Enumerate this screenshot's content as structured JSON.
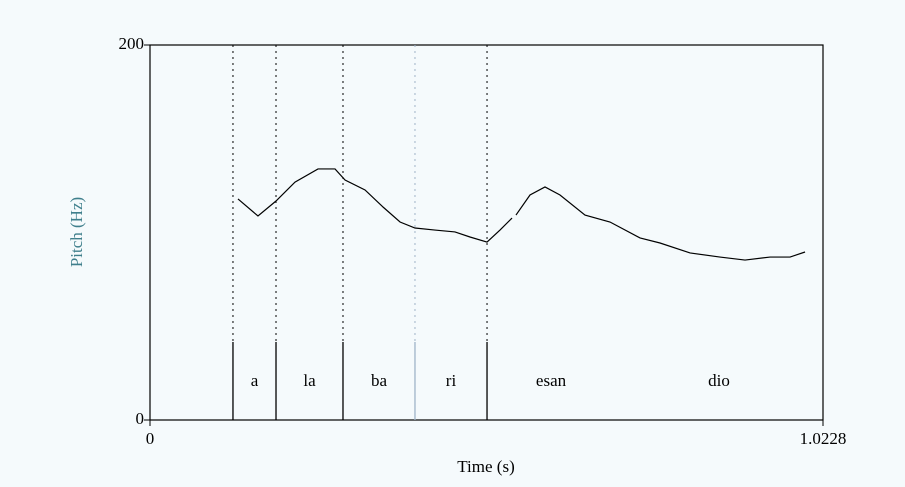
{
  "chart_data": {
    "type": "line",
    "x_label": "Time (s)",
    "y_label": "Pitch (Hz)",
    "xlim": [
      0,
      1.0228
    ],
    "xticks": [
      0,
      1.0228
    ],
    "ylim": [
      0,
      200
    ],
    "yticks": [
      0,
      200
    ],
    "series": [
      {
        "color": "#000000",
        "x": [
          0.1337,
          0.1641,
          0.1915,
          0.2204,
          0.2553,
          0.2812,
          0.2964,
          0.3268,
          0.3541,
          0.38,
          0.4027,
          0.4331,
          0.4635,
          0.4863,
          0.5122,
          0.5319,
          0.5502,
          0.5532,
          0.5562,
          0.5775,
          0.6003,
          0.6231,
          0.6611,
          0.6991,
          0.7447,
          0.7751,
          0.8207,
          0.8663,
          0.9043,
          0.9423,
          0.9727,
          0.9955
        ],
        "values": [
          117.9,
          108.8,
          116.8,
          126.9,
          133.9,
          133.9,
          128,
          122.7,
          113.6,
          105.6,
          102.4,
          101.3,
          100.3,
          97.6,
          94.9,
          101.3,
          107.7,
          null,
          109.3,
          120,
          124.3,
          120,
          109.3,
          105.6,
          97.1,
          94.4,
          89.1,
          86.9,
          85.3,
          86.9,
          86.9,
          89.6
        ]
      }
    ],
    "boundaries": [
      0.1261,
      0.1915,
      0.2933,
      0.4027,
      0.5122
    ],
    "segments": [
      "a",
      "la",
      "ba",
      "ri",
      "esan",
      "dio"
    ]
  }
}
